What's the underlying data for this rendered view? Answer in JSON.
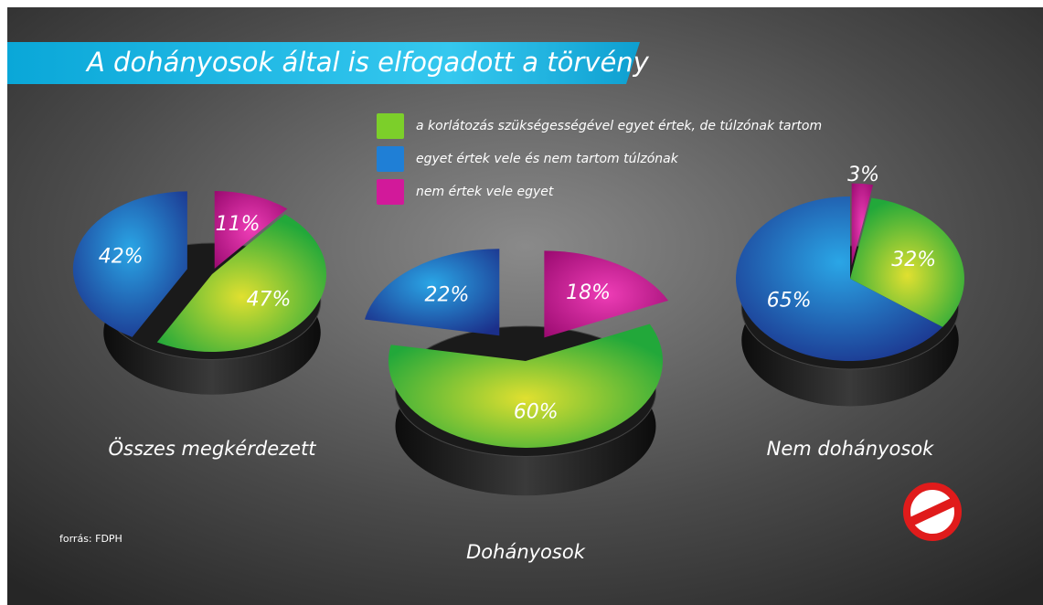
{
  "title": "A dohányosok által is elfogadott a törvény",
  "legend": {
    "labels": [
      "a korlátozás szükségességével egyet értek, de túlzónak tartom",
      "egyet értek vele és nem tartom túlzónak",
      "nem értek vele egyet"
    ],
    "colors": [
      "#7ccf2a",
      "#1f7fd6",
      "#d2199a"
    ]
  },
  "source": "forrás: FDPH",
  "chart_data": [
    {
      "type": "pie",
      "title": "Összes megkérdezett",
      "values": [
        47,
        42,
        11
      ],
      "value_labels": [
        "47%",
        "42%",
        "11%"
      ]
    },
    {
      "type": "pie",
      "title": "Dohányosok",
      "values": [
        60,
        22,
        18
      ],
      "value_labels": [
        "60%",
        "22%",
        "18%"
      ]
    },
    {
      "type": "pie",
      "title": "Nem dohányosok",
      "values": [
        32,
        65,
        3
      ],
      "value_labels": [
        "32%",
        "65%",
        "3%"
      ]
    }
  ]
}
